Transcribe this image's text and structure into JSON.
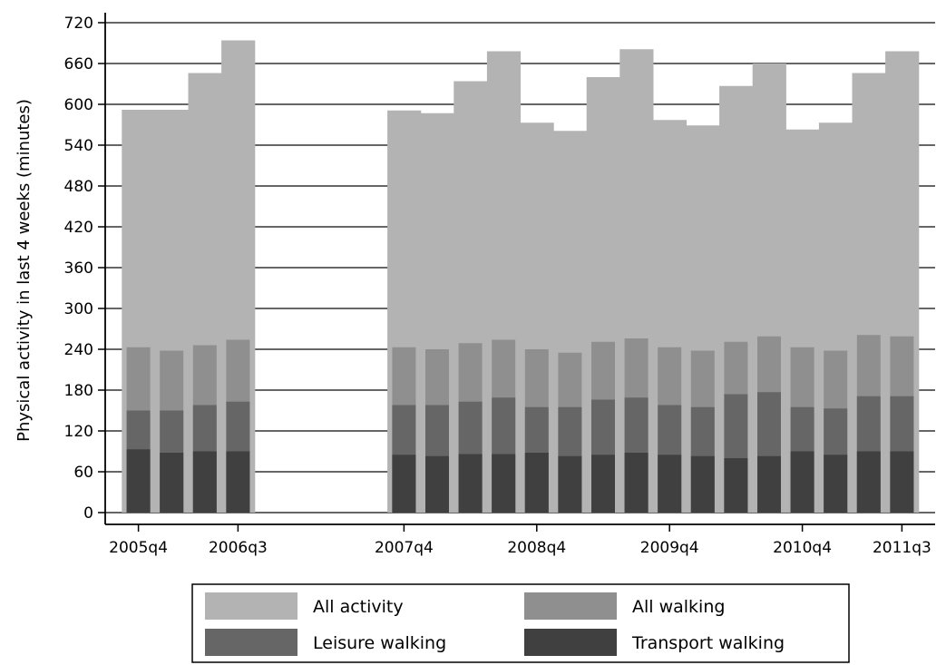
{
  "chart_data": {
    "type": "bar",
    "ylabel": "Physical activity in last 4 weeks (minutes)",
    "ylim": [
      0,
      720
    ],
    "yticks": [
      0,
      60,
      120,
      180,
      240,
      300,
      360,
      420,
      480,
      540,
      600,
      660,
      720
    ],
    "grid": true,
    "xlim": [
      "2005q3",
      "2011q4"
    ],
    "x_tick_labels": [
      "2005q4",
      "2006q3",
      "2007q4",
      "2008q4",
      "2009q4",
      "2010q4",
      "2011q3"
    ],
    "categories": [
      "2005q4",
      "2006q1",
      "2006q2",
      "2006q3",
      "2007q4",
      "2008q1",
      "2008q2",
      "2008q3",
      "2008q4",
      "2009q1",
      "2009q2",
      "2009q3",
      "2009q4",
      "2010q1",
      "2010q2",
      "2010q3",
      "2010q4",
      "2011q1",
      "2011q2",
      "2011q3"
    ],
    "series": [
      {
        "name": "All activity",
        "values": [
          592,
          592,
          646,
          694,
          591,
          587,
          634,
          678,
          573,
          561,
          640,
          681,
          577,
          569,
          627,
          660,
          563,
          573,
          646,
          678
        ]
      },
      {
        "name": "All walking",
        "values": [
          243,
          238,
          246,
          254,
          243,
          240,
          249,
          254,
          240,
          235,
          251,
          256,
          243,
          238,
          251,
          259,
          243,
          238,
          261,
          259
        ]
      },
      {
        "name": "Leisure walking",
        "values": [
          150,
          150,
          158,
          163,
          158,
          158,
          163,
          169,
          155,
          155,
          166,
          169,
          158,
          155,
          174,
          177,
          155,
          153,
          171,
          171
        ]
      },
      {
        "name": "Transport walking",
        "values": [
          93,
          88,
          90,
          90,
          85,
          83,
          86,
          86,
          88,
          83,
          85,
          88,
          85,
          83,
          80,
          83,
          90,
          85,
          90,
          90
        ]
      }
    ],
    "colors": {
      "All activity": "#b3b3b3",
      "All walking": "#8f8f8f",
      "Leisure walking": "#666666",
      "Transport walking": "#404040"
    },
    "legend": {
      "placement": "bottom",
      "entries": [
        "All activity",
        "All walking",
        "Leisure walking",
        "Transport walking"
      ]
    }
  }
}
